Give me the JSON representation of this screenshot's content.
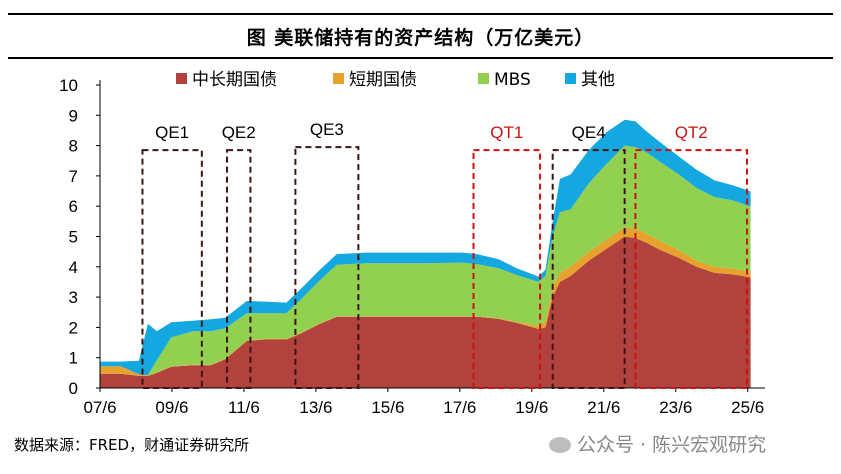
{
  "header": {
    "title": "图 美联储持有的资产结构（万亿美元）"
  },
  "chart_data": {
    "type": "area",
    "stacked": true,
    "xlabel": "",
    "ylabel": "",
    "ylim": [
      0,
      10
    ],
    "yticks": [
      "0",
      "1",
      "2",
      "3",
      "4",
      "5",
      "6",
      "7",
      "8",
      "9",
      "10"
    ],
    "xticks": [
      {
        "label": "07/6",
        "t": 2007.42
      },
      {
        "label": "09/6",
        "t": 2009.42
      },
      {
        "label": "11/6",
        "t": 2011.42
      },
      {
        "label": "13/6",
        "t": 2013.42
      },
      {
        "label": "15/6",
        "t": 2015.42
      },
      {
        "label": "17/6",
        "t": 2017.42
      },
      {
        "label": "19/6",
        "t": 2019.42
      },
      {
        "label": "21/6",
        "t": 2021.42
      },
      {
        "label": "23/6",
        "t": 2023.42
      },
      {
        "label": "25/6",
        "t": 2025.42
      }
    ],
    "grid": false,
    "legend_position": "top",
    "x": [
      2007.42,
      2008.0,
      2008.5,
      2008.75,
      2009.0,
      2009.4,
      2010.0,
      2010.5,
      2010.9,
      2011.5,
      2012.0,
      2012.6,
      2013.0,
      2013.5,
      2014.0,
      2014.8,
      2015.5,
      2016.5,
      2017.5,
      2017.9,
      2018.5,
      2019.0,
      2019.6,
      2019.8,
      2020.0,
      2020.2,
      2020.5,
      2021.0,
      2021.5,
      2022.0,
      2022.3,
      2022.6,
      2023.0,
      2023.5,
      2024.0,
      2024.5,
      2025.0,
      2025.5
    ],
    "series": [
      {
        "name": "中长期国债",
        "color": "#b2423d",
        "values": [
          0.47,
          0.47,
          0.4,
          0.4,
          0.5,
          0.7,
          0.75,
          0.75,
          0.95,
          1.55,
          1.6,
          1.6,
          1.8,
          2.1,
          2.35,
          2.35,
          2.35,
          2.35,
          2.35,
          2.35,
          2.28,
          2.15,
          1.95,
          2.0,
          3.0,
          3.5,
          3.7,
          4.2,
          4.6,
          5.0,
          4.95,
          4.8,
          4.55,
          4.3,
          4.0,
          3.8,
          3.75,
          3.65
        ]
      },
      {
        "name": "短期国债",
        "color": "#e7a22e",
        "values": [
          0.25,
          0.25,
          0.05,
          0.02,
          0.02,
          0.02,
          0.02,
          0.02,
          0.02,
          0.02,
          0.02,
          0.02,
          0.02,
          0.02,
          0.02,
          0.02,
          0.02,
          0.02,
          0.02,
          0.02,
          0.02,
          0.03,
          0.1,
          0.2,
          0.3,
          0.3,
          0.3,
          0.3,
          0.3,
          0.3,
          0.3,
          0.3,
          0.3,
          0.25,
          0.2,
          0.2,
          0.19,
          0.19
        ]
      },
      {
        "name": "MBS",
        "color": "#92d050",
        "values": [
          0.0,
          0.0,
          0.0,
          0.0,
          0.4,
          0.95,
          1.1,
          1.1,
          1.0,
          0.9,
          0.85,
          0.85,
          1.1,
          1.4,
          1.7,
          1.75,
          1.75,
          1.75,
          1.77,
          1.72,
          1.65,
          1.55,
          1.45,
          1.5,
          1.7,
          2.0,
          1.9,
          2.25,
          2.5,
          2.7,
          2.7,
          2.68,
          2.6,
          2.5,
          2.4,
          2.3,
          2.25,
          2.15
        ]
      },
      {
        "name": "其他",
        "color": "#15a8e0",
        "values": [
          0.15,
          0.15,
          0.45,
          1.7,
          0.95,
          0.5,
          0.35,
          0.4,
          0.35,
          0.4,
          0.38,
          0.35,
          0.35,
          0.35,
          0.35,
          0.35,
          0.35,
          0.35,
          0.33,
          0.33,
          0.3,
          0.22,
          0.18,
          0.2,
          0.5,
          1.1,
          1.15,
          1.1,
          1.05,
          0.85,
          0.85,
          0.7,
          0.65,
          0.6,
          0.6,
          0.55,
          0.5,
          0.5
        ]
      }
    ],
    "annotations": [
      {
        "label": "QE1",
        "x0": 2008.6,
        "x1": 2010.25,
        "y0": 0,
        "y1": 7.85,
        "color": "#3c1414"
      },
      {
        "label": "QE2",
        "x0": 2010.95,
        "x1": 2011.6,
        "y0": 0,
        "y1": 7.85,
        "color": "#3c1414"
      },
      {
        "label": "QE3",
        "x0": 2012.85,
        "x1": 2014.6,
        "y0": 0,
        "y1": 7.95,
        "color": "#3c1414"
      },
      {
        "label": "QT1",
        "x0": 2017.8,
        "x1": 2019.65,
        "y0": 0,
        "y1": 7.85,
        "color": "#cc1111"
      },
      {
        "label": "QE4",
        "x0": 2020.0,
        "x1": 2022.0,
        "y0": 0,
        "y1": 7.85,
        "color": "#3c1414"
      },
      {
        "label": "QT2",
        "x0": 2022.3,
        "x1": 2025.4,
        "y0": 0,
        "y1": 7.85,
        "color": "#cc1111"
      }
    ]
  },
  "footer": {
    "source": "数据来源：FRED，财通证券研究所",
    "watermark": "公众号 · 陈兴宏观研究"
  }
}
